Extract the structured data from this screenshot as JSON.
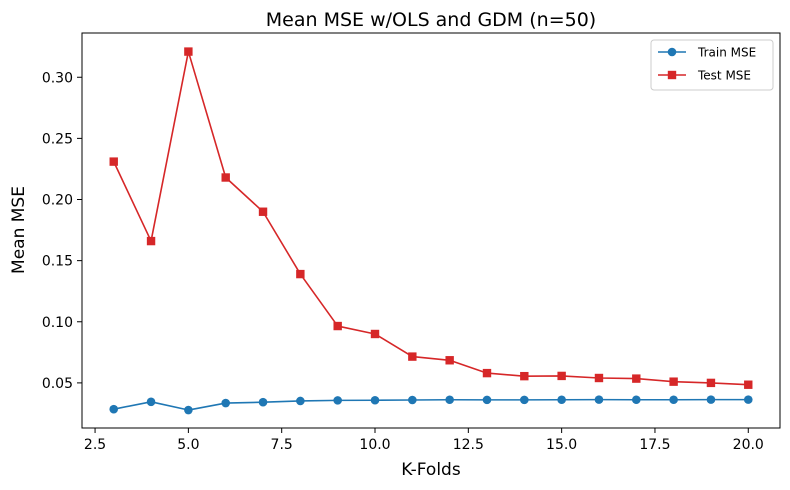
{
  "chart_data": {
    "type": "line",
    "title": "Mean MSE w/OLS and GDM (n=50)",
    "xlabel": "K-Folds",
    "ylabel": "Mean MSE",
    "x": [
      3,
      4,
      5,
      6,
      7,
      8,
      9,
      10,
      11,
      12,
      13,
      14,
      15,
      16,
      17,
      18,
      19,
      20
    ],
    "xlim": [
      2.15,
      20.85
    ],
    "ylim": [
      0.0131,
      0.3362
    ],
    "xticks": [
      "2.5",
      "5.0",
      "7.5",
      "10.0",
      "12.5",
      "15.0",
      "17.5",
      "20.0"
    ],
    "yticks": [
      "0.05",
      "0.10",
      "0.15",
      "0.20",
      "0.25",
      "0.30"
    ],
    "grid": false,
    "legend_position": "top-right",
    "series": [
      {
        "name": "Train MSE",
        "color": "#1f77b4",
        "marker": "circle",
        "values": [
          0.0285,
          0.0345,
          0.0278,
          0.0335,
          0.0342,
          0.0352,
          0.0357,
          0.0358,
          0.036,
          0.0362,
          0.0361,
          0.0361,
          0.0362,
          0.0363,
          0.0362,
          0.0362,
          0.0363,
          0.0363
        ]
      },
      {
        "name": "Test MSE",
        "color": "#d62728",
        "marker": "square",
        "values": [
          0.231,
          0.166,
          0.321,
          0.218,
          0.19,
          0.139,
          0.0965,
          0.09,
          0.0715,
          0.0685,
          0.058,
          0.0555,
          0.0557,
          0.054,
          0.0535,
          0.051,
          0.05,
          0.0485
        ]
      }
    ]
  }
}
